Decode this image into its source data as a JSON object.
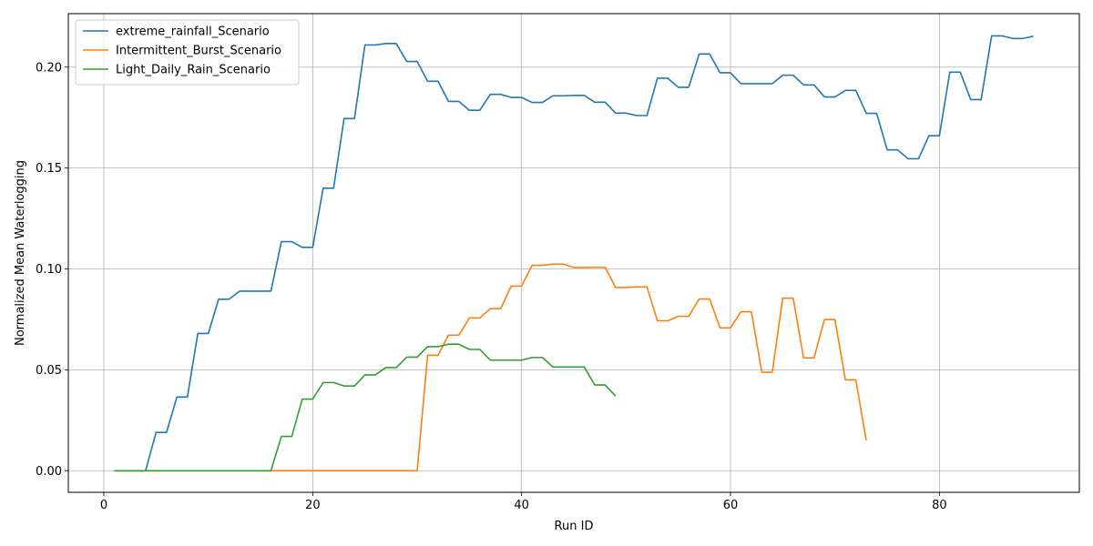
{
  "chart_data": {
    "type": "line",
    "title": "",
    "xlabel": "Run ID",
    "ylabel": "Normalized Mean Waterlogging",
    "xlim": [
      -3.4,
      93.4
    ],
    "ylim": [
      -0.0107,
      0.2265
    ],
    "xticks": [
      0,
      20,
      40,
      60,
      80
    ],
    "xtick_labels": [
      "0",
      "20",
      "40",
      "60",
      "80"
    ],
    "yticks": [
      0.0,
      0.05,
      0.1,
      0.15,
      0.2
    ],
    "ytick_labels": [
      "0.00",
      "0.05",
      "0.10",
      "0.15",
      "0.20"
    ],
    "grid": true,
    "legend_position": "top-left",
    "series": [
      {
        "name": "extreme_rainfall_Scenario",
        "color": "#1f77b4",
        "x": [
          1,
          2,
          3,
          4,
          5,
          6,
          7,
          8,
          9,
          10,
          11,
          12,
          13,
          14,
          15,
          16,
          17,
          18,
          19,
          20,
          21,
          22,
          23,
          24,
          25,
          26,
          27,
          28,
          29,
          30,
          31,
          32,
          33,
          34,
          35,
          36,
          37,
          38,
          39,
          40,
          41,
          42,
          43,
          44,
          45,
          46,
          47,
          48,
          49,
          50,
          51,
          52,
          53,
          54,
          55,
          56,
          57,
          58,
          59,
          60,
          61,
          62,
          63,
          64,
          65,
          66,
          67,
          68,
          69,
          70,
          71,
          72,
          73,
          74,
          75,
          76,
          77,
          78,
          79,
          80,
          81,
          82,
          83,
          84,
          85,
          86,
          87,
          88,
          89
        ],
        "y": [
          0,
          0,
          0,
          0,
          0.019,
          0.019,
          0.0365,
          0.0365,
          0.068,
          0.068,
          0.085,
          0.085,
          0.089,
          0.089,
          0.089,
          0.089,
          0.1135,
          0.1135,
          0.1107,
          0.1107,
          0.14,
          0.14,
          0.1745,
          0.1745,
          0.211,
          0.211,
          0.2117,
          0.2117,
          0.2028,
          0.2028,
          0.193,
          0.193,
          0.183,
          0.183,
          0.1786,
          0.1786,
          0.1865,
          0.1865,
          0.185,
          0.185,
          0.1825,
          0.1825,
          0.1858,
          0.1858,
          0.186,
          0.186,
          0.1826,
          0.1826,
          0.1772,
          0.1772,
          0.176,
          0.176,
          0.1945,
          0.1945,
          0.19,
          0.19,
          0.2065,
          0.2065,
          0.1972,
          0.1972,
          0.1918,
          0.1918,
          0.1918,
          0.1918,
          0.196,
          0.196,
          0.1912,
          0.1912,
          0.1852,
          0.1852,
          0.1885,
          0.1885,
          0.1771,
          0.1771,
          0.159,
          0.159,
          0.1546,
          0.1546,
          0.166,
          0.166,
          0.1975,
          0.1975,
          0.1839,
          0.1839,
          0.2155,
          0.2155,
          0.2142,
          0.2142,
          0.2153
        ]
      },
      {
        "name": "Intermittent_Burst_Scenario",
        "color": "#ff7f0e",
        "x": [
          1,
          2,
          3,
          4,
          5,
          6,
          7,
          8,
          9,
          10,
          11,
          12,
          13,
          14,
          15,
          16,
          17,
          18,
          19,
          20,
          21,
          22,
          23,
          24,
          25,
          26,
          27,
          28,
          29,
          30,
          31,
          32,
          33,
          34,
          35,
          36,
          37,
          38,
          39,
          40,
          41,
          42,
          43,
          44,
          45,
          46,
          47,
          48,
          49,
          50,
          51,
          52,
          53,
          54,
          55,
          56,
          57,
          58,
          59,
          60,
          61,
          62,
          63,
          64,
          65,
          66,
          67,
          68,
          69,
          70,
          71,
          72,
          73
        ],
        "y": [
          0,
          0,
          0,
          0,
          0,
          0,
          0,
          0,
          0,
          0,
          0,
          0,
          0,
          0,
          0,
          0,
          0,
          0,
          0,
          0,
          0,
          0,
          0,
          0,
          0,
          0,
          0,
          0,
          0,
          0,
          0.0572,
          0.0572,
          0.0672,
          0.0672,
          0.0757,
          0.0757,
          0.0803,
          0.0803,
          0.0915,
          0.0915,
          0.1018,
          0.1018,
          0.1024,
          0.1024,
          0.1007,
          0.1007,
          0.1008,
          0.1008,
          0.0908,
          0.0908,
          0.0911,
          0.0911,
          0.0743,
          0.0743,
          0.0765,
          0.0765,
          0.0851,
          0.0851,
          0.0708,
          0.0708,
          0.0788,
          0.0788,
          0.0488,
          0.0488,
          0.0855,
          0.0855,
          0.0559,
          0.0559,
          0.0749,
          0.0749,
          0.045,
          0.045,
          0.015
        ]
      },
      {
        "name": "Light_Daily_Rain_Scenario",
        "color": "#2ca02c",
        "x": [
          1,
          2,
          3,
          4,
          5,
          6,
          7,
          8,
          9,
          10,
          11,
          12,
          13,
          14,
          15,
          16,
          17,
          18,
          19,
          20,
          21,
          22,
          23,
          24,
          25,
          26,
          27,
          28,
          29,
          30,
          31,
          32,
          33,
          34,
          35,
          36,
          37,
          38,
          39,
          40,
          41,
          42,
          43,
          44,
          45,
          46,
          47,
          48,
          49
        ],
        "y": [
          0,
          0,
          0,
          0,
          0,
          0,
          0,
          0,
          0,
          0,
          0,
          0,
          0,
          0,
          0,
          0,
          0.017,
          0.017,
          0.0355,
          0.0355,
          0.0437,
          0.0437,
          0.042,
          0.042,
          0.0475,
          0.0475,
          0.0511,
          0.0511,
          0.0563,
          0.0563,
          0.0615,
          0.0615,
          0.0627,
          0.0627,
          0.0601,
          0.0601,
          0.0548,
          0.0548,
          0.0548,
          0.0548,
          0.0561,
          0.0561,
          0.0514,
          0.0514,
          0.0514,
          0.0514,
          0.0425,
          0.0425,
          0.037
        ]
      }
    ]
  }
}
